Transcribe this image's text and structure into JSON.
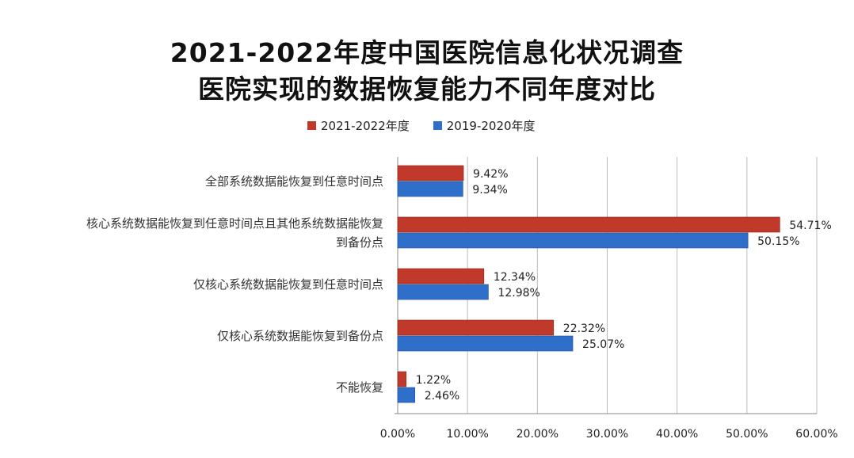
{
  "chart_data": {
    "type": "bar",
    "orientation": "horizontal",
    "title": "2021-2022年度中国医院信息化状况调查",
    "subtitle": "医院实现的数据恢复能力不同年度对比",
    "categories": [
      [
        "全部系统数据能恢复到任意时间点"
      ],
      [
        "核心系统数据能恢复到任意时间点且其他系统数据能恢复",
        "到备份点"
      ],
      [
        "仅核心系统数据能恢复到任意时间点"
      ],
      [
        "仅核心系统数据能恢复到备份点"
      ],
      [
        "不能恢复"
      ]
    ],
    "series": [
      {
        "name": "2021-2022年度",
        "color": "#c0392b",
        "values": [
          9.42,
          54.71,
          12.34,
          22.32,
          1.22
        ],
        "labels": [
          "9.42%",
          "54.71%",
          "12.34%",
          "22.32%",
          "1.22%"
        ]
      },
      {
        "name": "2019-2020年度",
        "color": "#2f6fc9",
        "values": [
          9.34,
          50.15,
          12.98,
          25.07,
          2.46
        ],
        "labels": [
          "9.34%",
          "50.15%",
          "12.98%",
          "25.07%",
          "2.46%"
        ]
      }
    ],
    "xlim": [
      0,
      60
    ],
    "xticks": [
      "0.00%",
      "10.00%",
      "20.00%",
      "30.00%",
      "40.00%",
      "50.00%",
      "60.00%"
    ],
    "xlabel": "",
    "ylabel": "",
    "grid": true,
    "legend": "top-center"
  }
}
